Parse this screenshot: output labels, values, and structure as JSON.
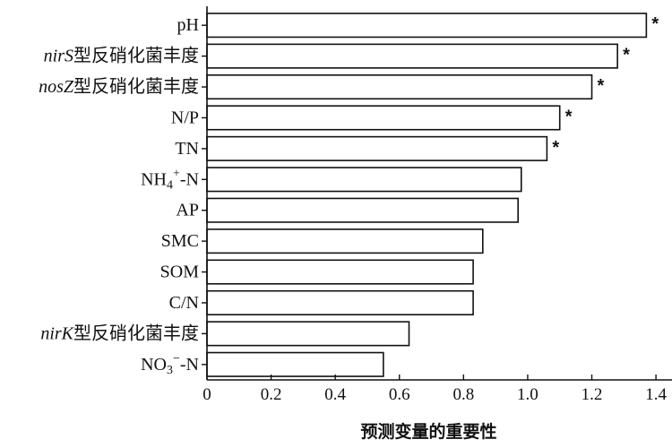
{
  "chart_data": {
    "type": "bar",
    "orientation": "horizontal",
    "categories": [
      "pH",
      "nirS型反硝化菌丰度",
      "nosZ型反硝化菌丰度",
      "N/P",
      "TN",
      "NH4+-N",
      "AP",
      "SMC",
      "SOM",
      "C/N",
      "nirK型反硝化菌丰度",
      "NO3−-N"
    ],
    "values": [
      1.37,
      1.28,
      1.2,
      1.1,
      1.06,
      0.98,
      0.97,
      0.86,
      0.83,
      0.83,
      0.63,
      0.55
    ],
    "significant": [
      true,
      true,
      true,
      true,
      true,
      false,
      false,
      false,
      false,
      false,
      false,
      false
    ],
    "significance_marker": "*",
    "xlabel": "预测变量的重要性",
    "xlim": [
      0,
      1.45
    ],
    "xticks": [
      0,
      0.2,
      0.4,
      0.6,
      0.8,
      1.0,
      1.2,
      1.4
    ],
    "xtick_labels": [
      "0",
      "0.2",
      "0.4",
      "0.6",
      "0.8",
      "1.0",
      "1.2",
      "1.4"
    ],
    "grid": false,
    "bar_fill": "#ffffff",
    "bar_edge": "#111111"
  }
}
